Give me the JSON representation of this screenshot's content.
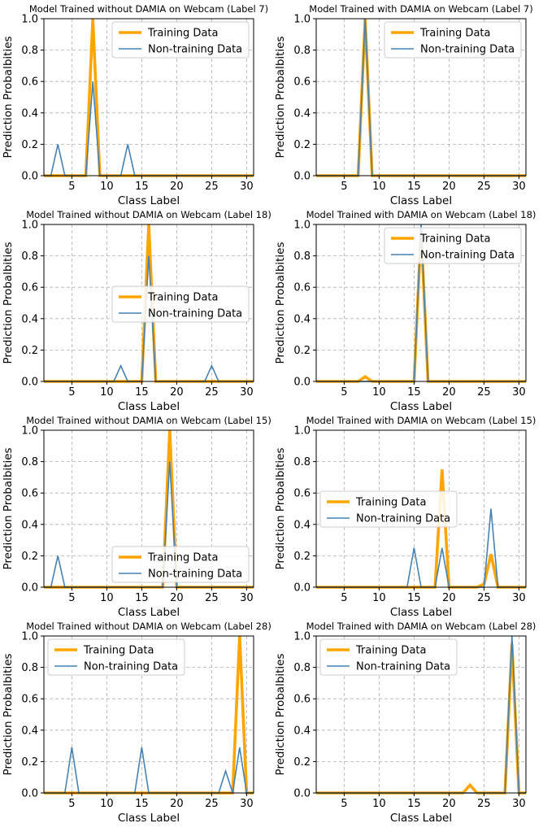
{
  "figure": {
    "colors": {
      "training": "#ffa500",
      "nontraining": "#4682b4",
      "grid": "#b0b0b0",
      "axis": "#000000"
    }
  },
  "chart_data": [
    {
      "type": "line",
      "title": "Model Trained without DAMIA on Webcam (Label 7)",
      "xlabel": "Class Label",
      "ylabel": "Prediction Probalbities",
      "xlim": [
        1,
        31
      ],
      "ylim": [
        0,
        1
      ],
      "xticks": [
        5,
        10,
        15,
        20,
        25,
        30
      ],
      "yticks": [
        0.0,
        0.2,
        0.4,
        0.6,
        0.8,
        1.0
      ],
      "grid": true,
      "legend": "top-right",
      "x": [
        1,
        2,
        3,
        4,
        5,
        6,
        7,
        8,
        9,
        10,
        11,
        12,
        13,
        14,
        15,
        16,
        17,
        18,
        19,
        20,
        21,
        22,
        23,
        24,
        25,
        26,
        27,
        28,
        29,
        30,
        31
      ],
      "series": [
        {
          "name": "Training Data",
          "color": "#ffa500",
          "values": [
            0,
            0,
            0,
            0,
            0,
            0,
            0,
            1,
            0,
            0,
            0,
            0,
            0,
            0,
            0,
            0,
            0,
            0,
            0,
            0,
            0,
            0,
            0,
            0,
            0,
            0,
            0,
            0,
            0,
            0,
            0
          ]
        },
        {
          "name": "Non-training Data",
          "color": "#4682b4",
          "values": [
            0,
            0,
            0.2,
            0,
            0,
            0,
            0,
            0.6,
            0,
            0,
            0,
            0,
            0.2,
            0,
            0,
            0,
            0,
            0,
            0,
            0,
            0,
            0,
            0,
            0,
            0,
            0,
            0,
            0,
            0,
            0,
            0
          ]
        }
      ]
    },
    {
      "type": "line",
      "title": "Model Trained with DAMIA on Webcam (Label 7)",
      "xlabel": "Class Label",
      "ylabel": "Prediction Probalbities",
      "xlim": [
        1,
        31
      ],
      "ylim": [
        0,
        1
      ],
      "xticks": [
        5,
        10,
        15,
        20,
        25,
        30
      ],
      "yticks": [
        0.0,
        0.2,
        0.4,
        0.6,
        0.8,
        1.0
      ],
      "grid": true,
      "legend": "top-right",
      "x": [
        1,
        2,
        3,
        4,
        5,
        6,
        7,
        8,
        9,
        10,
        11,
        12,
        13,
        14,
        15,
        16,
        17,
        18,
        19,
        20,
        21,
        22,
        23,
        24,
        25,
        26,
        27,
        28,
        29,
        30,
        31
      ],
      "series": [
        {
          "name": "Training Data",
          "color": "#ffa500",
          "values": [
            0,
            0,
            0,
            0,
            0,
            0,
            0,
            1,
            0,
            0,
            0,
            0,
            0,
            0,
            0,
            0,
            0,
            0,
            0,
            0,
            0,
            0,
            0,
            0,
            0,
            0,
            0,
            0,
            0,
            0,
            0
          ]
        },
        {
          "name": "Non-training Data",
          "color": "#4682b4",
          "values": [
            0,
            0,
            0,
            0,
            0,
            0,
            0,
            1,
            0,
            0,
            0,
            0,
            0,
            0,
            0,
            0,
            0,
            0,
            0,
            0,
            0,
            0,
            0,
            0,
            0,
            0,
            0,
            0,
            0,
            0,
            0
          ]
        }
      ]
    },
    {
      "type": "line",
      "title": "Model Trained without DAMIA on Webcam (Label 18)",
      "xlabel": "Class Label",
      "ylabel": "Prediction Probalbities",
      "xlim": [
        1,
        31
      ],
      "ylim": [
        0,
        1
      ],
      "xticks": [
        5,
        10,
        15,
        20,
        25,
        30
      ],
      "yticks": [
        0.0,
        0.2,
        0.4,
        0.6,
        0.8,
        1.0
      ],
      "grid": true,
      "legend": "center",
      "x": [
        1,
        2,
        3,
        4,
        5,
        6,
        7,
        8,
        9,
        10,
        11,
        12,
        13,
        14,
        15,
        16,
        17,
        18,
        19,
        20,
        21,
        22,
        23,
        24,
        25,
        26,
        27,
        28,
        29,
        30,
        31
      ],
      "series": [
        {
          "name": "Training Data",
          "color": "#ffa500",
          "values": [
            0,
            0,
            0,
            0,
            0,
            0,
            0,
            0,
            0,
            0,
            0,
            0,
            0,
            0,
            0,
            1,
            0,
            0,
            0,
            0,
            0,
            0,
            0,
            0,
            0,
            0,
            0,
            0,
            0,
            0,
            0
          ]
        },
        {
          "name": "Non-training Data",
          "color": "#4682b4",
          "values": [
            0,
            0,
            0,
            0,
            0,
            0,
            0,
            0,
            0,
            0,
            0,
            0.1,
            0,
            0,
            0,
            0.8,
            0,
            0,
            0,
            0,
            0,
            0,
            0,
            0,
            0.1,
            0,
            0,
            0,
            0,
            0,
            0
          ]
        }
      ]
    },
    {
      "type": "line",
      "title": "Model Trained with DAMIA on Webcam (Label 18)",
      "xlabel": "Class Label",
      "ylabel": "Prediction Probalbities",
      "xlim": [
        1,
        31
      ],
      "ylim": [
        0,
        1
      ],
      "xticks": [
        5,
        10,
        15,
        20,
        25,
        30
      ],
      "yticks": [
        0.0,
        0.2,
        0.4,
        0.6,
        0.8,
        1.0
      ],
      "grid": true,
      "legend": "top-right",
      "x": [
        1,
        2,
        3,
        4,
        5,
        6,
        7,
        8,
        9,
        10,
        11,
        12,
        13,
        14,
        15,
        16,
        17,
        18,
        19,
        20,
        21,
        22,
        23,
        24,
        25,
        26,
        27,
        28,
        29,
        30,
        31
      ],
      "series": [
        {
          "name": "Training Data",
          "color": "#ffa500",
          "values": [
            0,
            0,
            0,
            0,
            0,
            0,
            0,
            0.03,
            0,
            0,
            0,
            0,
            0,
            0,
            0,
            0.97,
            0,
            0,
            0,
            0,
            0,
            0,
            0,
            0,
            0,
            0,
            0,
            0,
            0,
            0,
            0
          ]
        },
        {
          "name": "Non-training Data",
          "color": "#4682b4",
          "values": [
            0,
            0,
            0,
            0,
            0,
            0,
            0,
            0,
            0,
            0,
            0,
            0,
            0,
            0,
            0,
            1,
            0,
            0,
            0,
            0,
            0,
            0,
            0,
            0,
            0,
            0,
            0,
            0,
            0,
            0,
            0
          ]
        }
      ]
    },
    {
      "type": "line",
      "title": "Model Trained without DAMIA on Webcam (Label 15)",
      "xlabel": "Class Label",
      "ylabel": "Prediction Probalbities",
      "xlim": [
        1,
        31
      ],
      "ylim": [
        0,
        1
      ],
      "xticks": [
        5,
        10,
        15,
        20,
        25,
        30
      ],
      "yticks": [
        0.0,
        0.2,
        0.4,
        0.6,
        0.8,
        1.0
      ],
      "grid": true,
      "legend": "lower-right",
      "x": [
        1,
        2,
        3,
        4,
        5,
        6,
        7,
        8,
        9,
        10,
        11,
        12,
        13,
        14,
        15,
        16,
        17,
        18,
        19,
        20,
        21,
        22,
        23,
        24,
        25,
        26,
        27,
        28,
        29,
        30,
        31
      ],
      "series": [
        {
          "name": "Training Data",
          "color": "#ffa500",
          "values": [
            0,
            0,
            0,
            0,
            0,
            0,
            0,
            0,
            0,
            0,
            0,
            0,
            0,
            0,
            0,
            0,
            0,
            0,
            1,
            0,
            0,
            0,
            0,
            0,
            0,
            0,
            0,
            0,
            0,
            0,
            0
          ]
        },
        {
          "name": "Non-training Data",
          "color": "#4682b4",
          "values": [
            0,
            0,
            0.2,
            0,
            0,
            0,
            0,
            0,
            0,
            0,
            0,
            0,
            0,
            0,
            0,
            0,
            0,
            0,
            0.8,
            0,
            0,
            0,
            0,
            0,
            0,
            0,
            0,
            0,
            0,
            0,
            0
          ]
        }
      ]
    },
    {
      "type": "line",
      "title": "Model Trained with DAMIA on Webcam (Label 15)",
      "xlabel": "Class Label",
      "ylabel": "Prediction Probalbities",
      "xlim": [
        1,
        31
      ],
      "ylim": [
        0,
        1
      ],
      "xticks": [
        5,
        10,
        15,
        20,
        25,
        30
      ],
      "yticks": [
        0.0,
        0.2,
        0.4,
        0.6,
        0.8,
        1.0
      ],
      "grid": true,
      "legend": "center-left",
      "x": [
        1,
        2,
        3,
        4,
        5,
        6,
        7,
        8,
        9,
        10,
        11,
        12,
        13,
        14,
        15,
        16,
        17,
        18,
        19,
        20,
        21,
        22,
        23,
        24,
        25,
        26,
        27,
        28,
        29,
        30,
        31
      ],
      "series": [
        {
          "name": "Training Data",
          "color": "#ffa500",
          "values": [
            0,
            0,
            0,
            0,
            0,
            0,
            0,
            0,
            0,
            0,
            0,
            0,
            0,
            0,
            0,
            0,
            0,
            0,
            0.75,
            0,
            0,
            0,
            0,
            0,
            0.02,
            0.21,
            0,
            0,
            0,
            0,
            0
          ]
        },
        {
          "name": "Non-training Data",
          "color": "#4682b4",
          "values": [
            0,
            0,
            0,
            0,
            0,
            0,
            0,
            0,
            0,
            0,
            0,
            0,
            0,
            0,
            0.25,
            0,
            0,
            0,
            0.25,
            0,
            0,
            0,
            0,
            0,
            0,
            0.5,
            0,
            0,
            0,
            0,
            0
          ]
        }
      ]
    },
    {
      "type": "line",
      "title": "Model Trained without DAMIA on Webcam (Label 28)",
      "xlabel": "Class Label",
      "ylabel": "Prediction Probalbities",
      "xlim": [
        1,
        31
      ],
      "ylim": [
        0,
        1
      ],
      "xticks": [
        5,
        10,
        15,
        20,
        25,
        30
      ],
      "yticks": [
        0.0,
        0.2,
        0.4,
        0.6,
        0.8,
        1.0
      ],
      "grid": true,
      "legend": "top-left",
      "x": [
        1,
        2,
        3,
        4,
        5,
        6,
        7,
        8,
        9,
        10,
        11,
        12,
        13,
        14,
        15,
        16,
        17,
        18,
        19,
        20,
        21,
        22,
        23,
        24,
        25,
        26,
        27,
        28,
        29,
        30,
        31
      ],
      "series": [
        {
          "name": "Training Data",
          "color": "#ffa500",
          "values": [
            0,
            0,
            0,
            0,
            0,
            0,
            0,
            0,
            0,
            0,
            0,
            0,
            0,
            0,
            0,
            0,
            0,
            0,
            0,
            0,
            0,
            0,
            0,
            0,
            0,
            0,
            0,
            0,
            1,
            0,
            0
          ]
        },
        {
          "name": "Non-training Data",
          "color": "#4682b4",
          "values": [
            0,
            0,
            0,
            0,
            0.29,
            0,
            0,
            0,
            0,
            0,
            0,
            0,
            0,
            0,
            0.29,
            0,
            0,
            0,
            0,
            0,
            0,
            0,
            0,
            0,
            0,
            0,
            0.14,
            0,
            0.29,
            0,
            0
          ]
        }
      ]
    },
    {
      "type": "line",
      "title": "Model Trained with DAMIA on Webcam (Label 28)",
      "xlabel": "Class Label",
      "ylabel": "Prediction Probalbities",
      "xlim": [
        1,
        31
      ],
      "ylim": [
        0,
        1
      ],
      "xticks": [
        5,
        10,
        15,
        20,
        25,
        30
      ],
      "yticks": [
        0.0,
        0.2,
        0.4,
        0.6,
        0.8,
        1.0
      ],
      "grid": true,
      "legend": "top-left",
      "x": [
        1,
        2,
        3,
        4,
        5,
        6,
        7,
        8,
        9,
        10,
        11,
        12,
        13,
        14,
        15,
        16,
        17,
        18,
        19,
        20,
        21,
        22,
        23,
        24,
        25,
        26,
        27,
        28,
        29,
        30,
        31
      ],
      "series": [
        {
          "name": "Training Data",
          "color": "#ffa500",
          "values": [
            0,
            0,
            0,
            0,
            0,
            0,
            0,
            0,
            0,
            0,
            0,
            0,
            0,
            0,
            0,
            0,
            0,
            0,
            0,
            0,
            0,
            0,
            0.05,
            0,
            0,
            0,
            0,
            0,
            0.95,
            0,
            0
          ]
        },
        {
          "name": "Non-training Data",
          "color": "#4682b4",
          "values": [
            0,
            0,
            0,
            0,
            0,
            0,
            0,
            0,
            0,
            0,
            0,
            0,
            0,
            0,
            0,
            0,
            0,
            0,
            0,
            0,
            0,
            0,
            0,
            0,
            0,
            0,
            0,
            0,
            1,
            0,
            0
          ]
        }
      ]
    }
  ]
}
